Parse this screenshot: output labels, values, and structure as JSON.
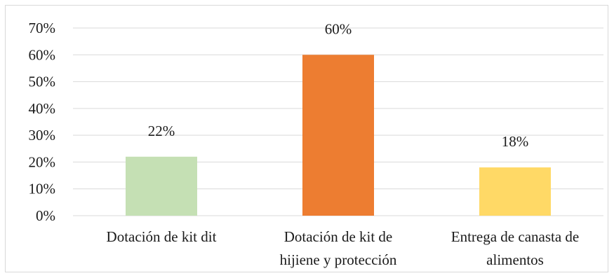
{
  "chart_data": {
    "type": "bar",
    "categories": [
      [
        "Dotación de kit dit"
      ],
      [
        "Dotación de kit de",
        "hijiene y protección"
      ],
      [
        "Entrega de canasta de",
        "alimentos"
      ]
    ],
    "values": [
      0.22,
      0.6,
      0.18
    ],
    "data_labels": [
      "22%",
      "60%",
      "18%"
    ],
    "colors": [
      "#c5e0b4",
      "#ed7d31",
      "#ffd966"
    ],
    "ylim": [
      0,
      0.7
    ],
    "yticks": [
      0,
      0.1,
      0.2,
      0.3,
      0.4,
      0.5,
      0.6,
      0.7
    ],
    "ytick_labels": [
      "0%",
      "10%",
      "20%",
      "30%",
      "40%",
      "50%",
      "60%",
      "70%"
    ],
    "title": "",
    "xlabel": "",
    "ylabel": "",
    "grid": true,
    "legend": "none"
  }
}
